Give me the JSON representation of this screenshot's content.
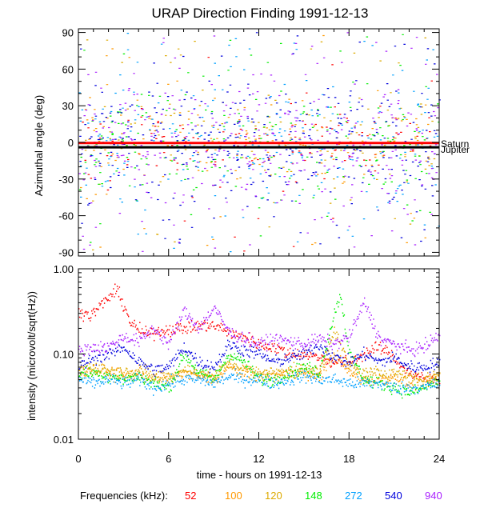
{
  "chart_data": [
    {
      "type": "scatter",
      "title": "URAP Direction Finding  1991-12-13",
      "xlabel": "",
      "ylabel": "Azimuthal angle (deg)",
      "xlim": [
        0,
        24
      ],
      "ylim": [
        -93,
        93
      ],
      "yticks": [
        -90,
        -60,
        -30,
        0,
        30,
        60,
        90
      ],
      "ytick_labels": [
        "-90",
        "-60",
        "-30",
        "0",
        "30",
        "60",
        "90"
      ],
      "reference_lines": [
        {
          "name": "Saturn",
          "y": -0.5,
          "color": "#ff0000"
        },
        {
          "name": "Jupiter",
          "y": -4,
          "color": "#000000"
        }
      ],
      "series_description": "Azimuth scatter for each frequency channel, concentrated near 0 deg with scatter across -90..90",
      "series": [
        {
          "name": "52",
          "density": 0.6,
          "spread": 20
        },
        {
          "name": "100",
          "density": 0.7,
          "spread": 25
        },
        {
          "name": "120",
          "density": 0.7,
          "spread": 25
        },
        {
          "name": "148",
          "density": 1.0,
          "spread": 28
        },
        {
          "name": "272",
          "density": 1.2,
          "spread": 35
        },
        {
          "name": "540",
          "density": 1.6,
          "spread": 35
        },
        {
          "name": "940",
          "density": 1.6,
          "spread": 35
        }
      ]
    },
    {
      "type": "line",
      "title": "",
      "xlabel": "time - hours on 1991-12-13",
      "ylabel": "intensity (microvolt/sqrt(Hz))",
      "yscale": "log",
      "xlim": [
        0,
        24
      ],
      "ylim": [
        0.01,
        1.0
      ],
      "xticks": [
        0,
        6,
        12,
        18,
        24
      ],
      "xtick_labels": [
        "0",
        "6",
        "12",
        "18",
        "24"
      ],
      "yticks": [
        0.01,
        0.1,
        1.0
      ],
      "ytick_labels": [
        "0.01",
        "0.10",
        "1.00"
      ],
      "series": [
        {
          "name": "52",
          "x": [
            0,
            0.8,
            1.5,
            2.2,
            2.6,
            3.5,
            4.5,
            5.5,
            7,
            8.5,
            9.5,
            10.5,
            11,
            12,
            13,
            14,
            15,
            16,
            17,
            18,
            19,
            20,
            21,
            22,
            23,
            24
          ],
          "y": [
            0.32,
            0.28,
            0.38,
            0.5,
            0.55,
            0.22,
            0.17,
            0.19,
            0.2,
            0.22,
            0.2,
            0.16,
            0.16,
            0.13,
            0.12,
            0.1,
            0.1,
            0.09,
            0.08,
            0.08,
            0.1,
            0.12,
            0.09,
            0.06,
            0.05,
            0.05
          ]
        },
        {
          "name": "100",
          "x": [
            0,
            1,
            2,
            3,
            4,
            5,
            6,
            7,
            8,
            9,
            10,
            11,
            12,
            13,
            14,
            15,
            16,
            17,
            18,
            19,
            20,
            21,
            22,
            23,
            24
          ],
          "y": [
            0.06,
            0.065,
            0.06,
            0.055,
            0.06,
            0.05,
            0.05,
            0.06,
            0.055,
            0.05,
            0.07,
            0.06,
            0.055,
            0.055,
            0.06,
            0.06,
            0.055,
            0.1,
            0.06,
            0.05,
            0.05,
            0.055,
            0.045,
            0.045,
            0.055
          ]
        },
        {
          "name": "120",
          "x": [
            0,
            1,
            2,
            3,
            4,
            5,
            6,
            7,
            8,
            9,
            10,
            11,
            12,
            13,
            14,
            15,
            16,
            17,
            18,
            19,
            20,
            21,
            22,
            23,
            24
          ],
          "y": [
            0.065,
            0.07,
            0.065,
            0.06,
            0.065,
            0.055,
            0.055,
            0.065,
            0.06,
            0.055,
            0.08,
            0.065,
            0.06,
            0.06,
            0.065,
            0.065,
            0.06,
            0.2,
            0.07,
            0.06,
            0.06,
            0.06,
            0.055,
            0.05,
            0.06
          ]
        },
        {
          "name": "148",
          "x": [
            0,
            1,
            2,
            3,
            4,
            5,
            6,
            7,
            8,
            9,
            10,
            11,
            12,
            13,
            14,
            15,
            16,
            17,
            17.4,
            18,
            19,
            20,
            21,
            22,
            23,
            24
          ],
          "y": [
            0.06,
            0.06,
            0.055,
            0.05,
            0.055,
            0.045,
            0.04,
            0.1,
            0.06,
            0.05,
            0.1,
            0.08,
            0.05,
            0.05,
            0.06,
            0.07,
            0.06,
            0.3,
            0.5,
            0.1,
            0.05,
            0.045,
            0.04,
            0.035,
            0.04,
            0.05
          ]
        },
        {
          "name": "272",
          "x": [
            0,
            1,
            2,
            3,
            4,
            5,
            6,
            7,
            8,
            9,
            10,
            11,
            12,
            13,
            14,
            15,
            16,
            17,
            18,
            19,
            20,
            21,
            22,
            23,
            24
          ],
          "y": [
            0.05,
            0.045,
            0.05,
            0.045,
            0.05,
            0.04,
            0.045,
            0.05,
            0.05,
            0.045,
            0.055,
            0.05,
            0.05,
            0.045,
            0.05,
            0.055,
            0.05,
            0.05,
            0.045,
            0.045,
            0.045,
            0.04,
            0.04,
            0.04,
            0.045
          ]
        },
        {
          "name": "540",
          "x": [
            0,
            1,
            2,
            3,
            4,
            5,
            6,
            7,
            8,
            9,
            10,
            11,
            12,
            13,
            14,
            15,
            16,
            17,
            18,
            19,
            20,
            21,
            22,
            23,
            24
          ],
          "y": [
            0.07,
            0.09,
            0.1,
            0.12,
            0.08,
            0.065,
            0.07,
            0.12,
            0.08,
            0.07,
            0.13,
            0.11,
            0.1,
            0.08,
            0.09,
            0.1,
            0.13,
            0.09,
            0.08,
            0.1,
            0.08,
            0.09,
            0.07,
            0.07,
            0.08
          ]
        },
        {
          "name": "940",
          "x": [
            0,
            1,
            2,
            3,
            4,
            5,
            6,
            7,
            8,
            9,
            10,
            11,
            12,
            13,
            14,
            15,
            16,
            17,
            18,
            19,
            20,
            21,
            22,
            23,
            24
          ],
          "y": [
            0.11,
            0.12,
            0.12,
            0.16,
            0.14,
            0.2,
            0.13,
            0.32,
            0.2,
            0.35,
            0.18,
            0.15,
            0.13,
            0.15,
            0.14,
            0.13,
            0.15,
            0.13,
            0.16,
            0.4,
            0.15,
            0.13,
            0.11,
            0.12,
            0.17
          ]
        }
      ]
    }
  ],
  "legend": {
    "label": "Frequencies (kHz):",
    "items": [
      {
        "name": "52",
        "color": "#ff0000"
      },
      {
        "name": "100",
        "color": "#ff9900"
      },
      {
        "name": "120",
        "color": "#ddaa00"
      },
      {
        "name": "148",
        "color": "#00ee00"
      },
      {
        "name": "272",
        "color": "#00a0ff"
      },
      {
        "name": "540",
        "color": "#0000dd"
      },
      {
        "name": "940",
        "color": "#aa22ff"
      }
    ]
  }
}
